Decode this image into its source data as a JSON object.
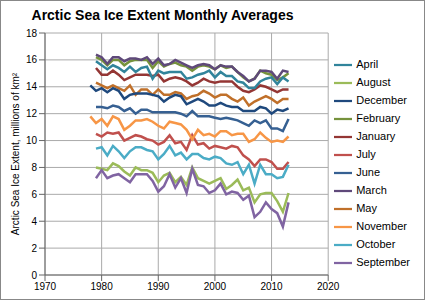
{
  "chart_data": {
    "type": "line",
    "title": "Arctic Sea Ice Extent Monthly Averages",
    "ylabel": "Arctic Sea Ice Extent, millions of km²",
    "x": [
      1978,
      1979,
      1980,
      1981,
      1982,
      1983,
      1984,
      1985,
      1986,
      1987,
      1988,
      1989,
      1990,
      1991,
      1992,
      1993,
      1994,
      1995,
      1996,
      1997,
      1998,
      1999,
      2000,
      2001,
      2002,
      2003,
      2004,
      2005,
      2006,
      2007,
      2008,
      2009,
      2010,
      2011,
      2012,
      2013
    ],
    "xlim": [
      1970,
      2020
    ],
    "xticks": [
      1970,
      1980,
      1990,
      2000,
      2010,
      2020
    ],
    "ylim": [
      0,
      18
    ],
    "yticks": [
      0,
      2,
      4,
      6,
      8,
      10,
      12,
      14,
      16,
      18
    ],
    "grid": true,
    "legend": "right",
    "series": [
      {
        "name": "January",
        "color": "#943634",
        "values": [
          null,
          15.4,
          14.9,
          14.9,
          15.2,
          14.9,
          14.5,
          14.7,
          14.9,
          14.9,
          14.9,
          14.8,
          14.9,
          14.4,
          14.6,
          14.7,
          14.6,
          14.4,
          14.1,
          14.3,
          14.6,
          14.4,
          14.3,
          14.4,
          14.4,
          14.4,
          14.0,
          13.7,
          13.6,
          13.8,
          14.1,
          14.0,
          13.8,
          13.6,
          13.8,
          13.8
        ]
      },
      {
        "name": "February",
        "color": "#76923c",
        "values": [
          null,
          16.2,
          16.0,
          15.6,
          16.0,
          16.0,
          15.6,
          15.9,
          16.0,
          16.0,
          16.0,
          15.4,
          15.9,
          15.5,
          15.7,
          15.8,
          15.6,
          15.5,
          15.2,
          15.5,
          15.6,
          15.5,
          15.3,
          15.6,
          15.4,
          15.5,
          15.1,
          14.7,
          14.4,
          14.6,
          15.2,
          15.0,
          14.9,
          14.5,
          14.7,
          15.0
        ]
      },
      {
        "name": "March",
        "color": "#5f497a",
        "values": [
          null,
          16.4,
          16.2,
          15.7,
          16.2,
          16.2,
          15.9,
          16.1,
          16.1,
          16.0,
          16.2,
          15.7,
          16.1,
          15.6,
          15.7,
          16.0,
          15.8,
          15.6,
          15.4,
          15.6,
          15.7,
          15.6,
          15.3,
          15.6,
          15.5,
          15.5,
          15.1,
          14.8,
          14.4,
          14.6,
          15.2,
          15.2,
          15.1,
          14.6,
          15.2,
          15.1
        ]
      },
      {
        "name": "April",
        "color": "#31849b",
        "values": [
          null,
          15.9,
          15.6,
          15.3,
          15.6,
          15.4,
          15.1,
          15.5,
          15.1,
          15.4,
          15.5,
          14.6,
          15.2,
          15.0,
          15.1,
          15.1,
          15.1,
          14.6,
          14.7,
          14.9,
          15.0,
          15.2,
          14.7,
          15.1,
          14.8,
          14.8,
          14.4,
          14.3,
          13.9,
          13.9,
          14.4,
          14.6,
          14.7,
          14.2,
          14.7,
          14.4
        ]
      },
      {
        "name": "May",
        "color": "#c0702a",
        "values": [
          null,
          14.3,
          14.1,
          13.9,
          14.1,
          13.9,
          13.7,
          14.1,
          13.4,
          13.8,
          13.8,
          13.4,
          13.8,
          13.4,
          13.4,
          13.6,
          13.5,
          13.1,
          13.3,
          13.4,
          13.7,
          13.5,
          13.2,
          13.4,
          13.4,
          13.1,
          12.9,
          13.2,
          12.6,
          12.9,
          13.1,
          13.3,
          13.1,
          12.8,
          13.1,
          13.1
        ]
      },
      {
        "name": "June",
        "color": "#366092",
        "values": [
          null,
          12.5,
          12.5,
          12.4,
          12.6,
          12.5,
          12.2,
          12.4,
          12.0,
          12.3,
          12.3,
          12.1,
          12.1,
          12.1,
          12.1,
          12.1,
          12.0,
          11.8,
          12.2,
          11.8,
          11.8,
          11.8,
          11.7,
          11.6,
          11.7,
          11.6,
          11.5,
          11.3,
          11.1,
          11.5,
          11.3,
          11.5,
          10.9,
          10.9,
          10.7,
          11.6
        ]
      },
      {
        "name": "July",
        "color": "#c0504d",
        "values": [
          null,
          10.5,
          10.3,
          10.6,
          10.5,
          10.6,
          10.0,
          10.2,
          10.4,
          10.3,
          10.1,
          10.0,
          9.7,
          9.9,
          10.4,
          9.8,
          9.9,
          9.3,
          10.4,
          9.7,
          9.8,
          9.4,
          9.6,
          9.5,
          9.4,
          9.6,
          9.5,
          8.9,
          8.6,
          8.1,
          8.6,
          8.6,
          8.4,
          7.9,
          7.9,
          8.4
        ]
      },
      {
        "name": "August",
        "color": "#9bbb59",
        "values": [
          null,
          8.0,
          7.9,
          7.8,
          8.3,
          8.1,
          7.7,
          7.4,
          8.0,
          7.8,
          7.8,
          7.6,
          6.9,
          7.4,
          7.6,
          6.9,
          7.3,
          6.7,
          8.0,
          7.2,
          7.0,
          6.8,
          7.0,
          7.2,
          6.4,
          6.7,
          7.1,
          6.3,
          6.5,
          5.4,
          6.0,
          6.1,
          6.1,
          5.5,
          4.7,
          6.1
        ]
      },
      {
        "name": "September",
        "color": "#8064a2",
        "values": [
          null,
          7.2,
          7.8,
          7.2,
          7.4,
          7.5,
          7.2,
          6.9,
          7.5,
          7.5,
          7.5,
          7.0,
          6.2,
          6.6,
          7.5,
          6.5,
          7.2,
          6.1,
          7.9,
          6.7,
          6.6,
          6.1,
          6.3,
          6.8,
          6.0,
          6.2,
          6.1,
          5.6,
          5.9,
          4.3,
          4.7,
          5.4,
          4.9,
          4.6,
          3.6,
          5.4
        ]
      },
      {
        "name": "October",
        "color": "#4bacc6",
        "values": [
          null,
          9.4,
          9.5,
          8.9,
          9.6,
          9.2,
          8.7,
          9.2,
          9.5,
          9.5,
          9.3,
          9.2,
          8.6,
          9.0,
          9.6,
          8.9,
          9.1,
          8.6,
          9.0,
          9.0,
          8.7,
          8.6,
          8.8,
          8.7,
          8.3,
          8.2,
          8.4,
          7.5,
          8.2,
          6.8,
          8.2,
          7.5,
          7.5,
          7.2,
          7.3,
          8.2
        ]
      },
      {
        "name": "November",
        "color": "#f79646",
        "values": [
          11.8,
          11.3,
          11.6,
          11.1,
          11.8,
          11.6,
          10.8,
          11.1,
          11.5,
          11.5,
          11.6,
          11.4,
          11.1,
          10.9,
          11.4,
          11.3,
          11.2,
          10.8,
          10.1,
          10.8,
          10.4,
          10.5,
          10.3,
          10.7,
          10.7,
          10.4,
          10.5,
          10.5,
          9.9,
          10.1,
          10.6,
          10.2,
          9.9,
          10.0,
          9.9,
          10.3
        ]
      },
      {
        "name": "December",
        "color": "#1f497d",
        "values": [
          14.1,
          13.7,
          13.9,
          13.6,
          13.9,
          13.7,
          13.1,
          13.4,
          13.5,
          13.5,
          13.5,
          13.4,
          13.3,
          12.9,
          13.2,
          13.4,
          13.3,
          12.7,
          12.9,
          13.1,
          12.9,
          12.6,
          12.6,
          12.8,
          12.6,
          12.5,
          12.5,
          12.2,
          12.2,
          12.2,
          12.5,
          12.4,
          12.0,
          12.3,
          12.2,
          12.4
        ]
      }
    ]
  }
}
